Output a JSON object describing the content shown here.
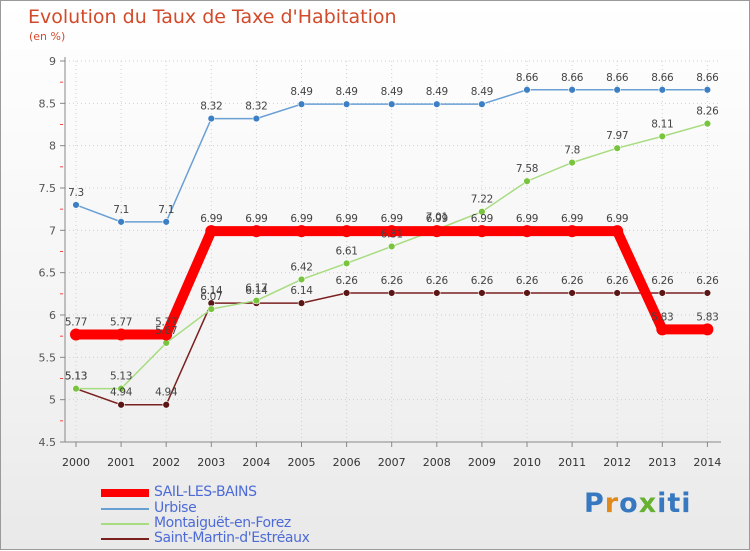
{
  "chart_data": {
    "type": "line",
    "title": "Evolution du Taux de Taxe d'Habitation",
    "unit_label": "(en %)",
    "x": [
      "2000",
      "2001",
      "2002",
      "2003",
      "2004",
      "2005",
      "2006",
      "2007",
      "2008",
      "2009",
      "2010",
      "2011",
      "2012",
      "2013",
      "2014"
    ],
    "ylim": [
      4.5,
      9
    ],
    "yticks": [
      4.5,
      5,
      5.5,
      6,
      6.5,
      7,
      7.5,
      8,
      8.5,
      9
    ],
    "ytick_labels": [
      "4.5",
      "5",
      "5.5",
      "6",
      "6.5",
      "7",
      "7.5",
      "8",
      "8.5",
      "9"
    ],
    "grid": true,
    "series": [
      {
        "name": "Saint-Martin-d'Estréaux",
        "color": "#7a2020",
        "point_color": "#5a1515",
        "values": [
          5.13,
          4.94,
          4.94,
          6.14,
          6.14,
          6.14,
          6.26,
          6.26,
          6.26,
          6.26,
          6.26,
          6.26,
          6.26,
          6.26,
          6.26
        ],
        "labels": [
          "5.13",
          "4.94",
          "4.94",
          "6.14",
          "6.14",
          "6.14",
          "6.26",
          "6.26",
          "6.26",
          "6.26",
          "6.26",
          "6.26",
          "6.26",
          "6.26",
          "6.26"
        ]
      },
      {
        "name": "Montaiguët-en-Forez",
        "color": "#a8dc80",
        "point_color": "#79c43e",
        "values": [
          5.13,
          5.13,
          5.67,
          6.07,
          6.17,
          6.42,
          6.61,
          6.81,
          7.01,
          7.22,
          7.58,
          7.8,
          7.97,
          8.11,
          8.26
        ],
        "labels": [
          "5.13",
          "5.13",
          "5.67",
          "6.07",
          "6.17",
          "6.42",
          "6.61",
          "6.81",
          "7.01",
          "7.22",
          "7.58",
          "7.8",
          "7.97",
          "8.11",
          "8.26"
        ]
      },
      {
        "name": "Urbise",
        "color": "#6a9fd4",
        "point_color": "#3d7fc4",
        "values": [
          7.3,
          7.1,
          7.1,
          8.32,
          8.32,
          8.49,
          8.49,
          8.49,
          8.49,
          8.49,
          8.66,
          8.66,
          8.66,
          8.66,
          8.66
        ],
        "labels": [
          "7.3",
          "7.1",
          "7.1",
          "8.32",
          "8.32",
          "8.49",
          "8.49",
          "8.49",
          "8.49",
          "8.49",
          "8.66",
          "8.66",
          "8.66",
          "8.66",
          "8.66"
        ]
      },
      {
        "name": "SAIL-LES-BAINS",
        "color": "#ff0000",
        "point_color": "#ff0000",
        "values": [
          5.77,
          5.77,
          5.77,
          6.99,
          6.99,
          6.99,
          6.99,
          6.99,
          6.99,
          6.99,
          6.99,
          6.99,
          6.99,
          5.83,
          5.83
        ],
        "labels": [
          "5.77",
          "5.77",
          "5.77",
          "6.99",
          "6.99",
          "6.99",
          "6.99",
          "6.99",
          "6.99",
          "6.99",
          "6.99",
          "6.99",
          "6.99",
          "5.83",
          "5.83"
        ]
      }
    ]
  },
  "legend": [
    {
      "label": "SAIL-LES-BAINS",
      "color": "#ff0000"
    },
    {
      "label": "Urbise",
      "color": "#6a9fd4"
    },
    {
      "label": "Montaiguët-en-Forez",
      "color": "#a8dc80"
    },
    {
      "label": "Saint-Martin-d'Estréaux",
      "color": "#7a2020"
    }
  ],
  "logo": [
    "P",
    "r",
    "o",
    "x",
    "iti"
  ],
  "colors": {
    "title": "#d24a2a",
    "legend_text": "#4d6bd6",
    "grid": "#cccccc",
    "axis": "#888888"
  }
}
